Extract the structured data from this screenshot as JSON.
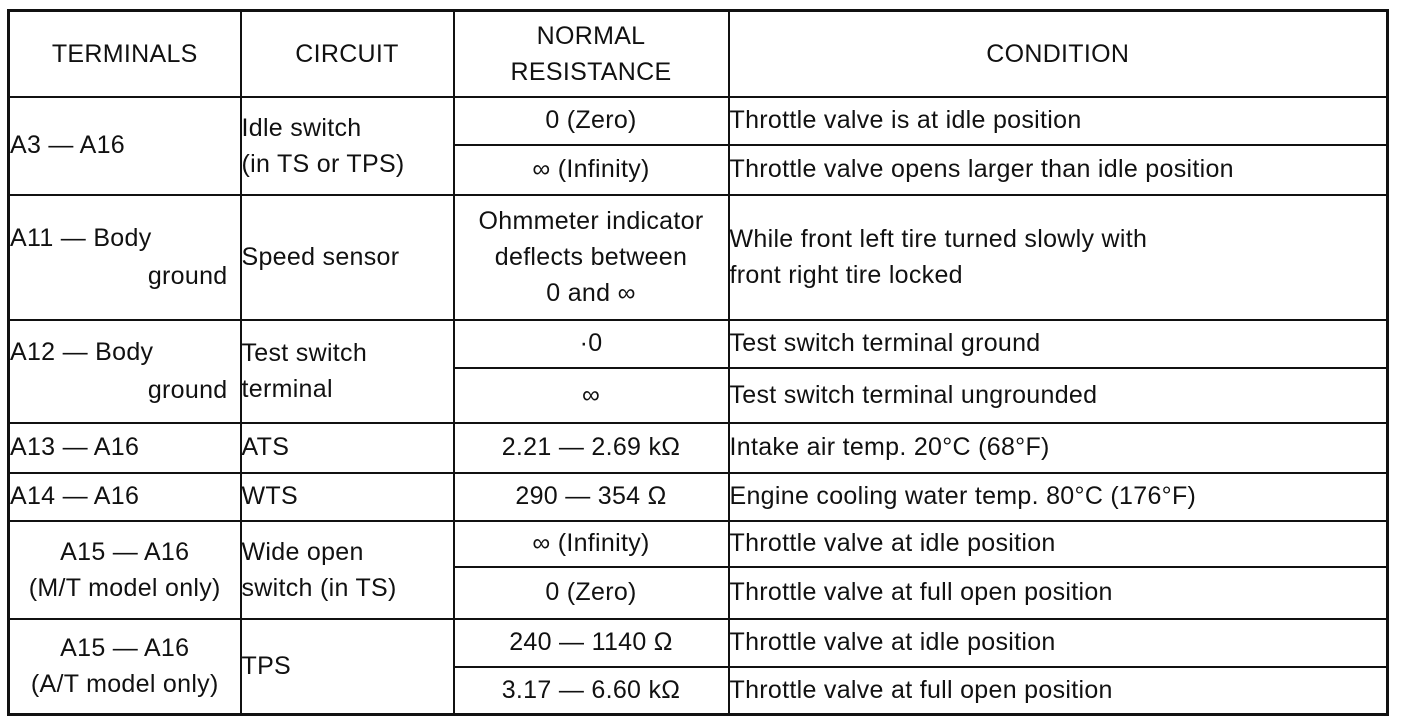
{
  "headers": {
    "terminals": "TERMINALS",
    "circuit": "CIRCUIT",
    "resistance_line1": "NORMAL",
    "resistance_line2": "RESISTANCE",
    "condition": "CONDITION"
  },
  "groups": [
    {
      "terminal": "A3 — A16",
      "circuit_line1": "Idle switch",
      "circuit_line2": "(in TS or TPS)",
      "rows": [
        {
          "resistance": "0 (Zero)",
          "condition": "Throttle valve is at idle position"
        },
        {
          "resistance": "∞ (Infinity)",
          "condition": "Throttle valve opens larger than idle position"
        }
      ]
    },
    {
      "terminal_line1": "A11 — Body",
      "terminal_line2": "ground",
      "circuit": "Speed sensor",
      "resistance_line1": "Ohmmeter indicator",
      "resistance_line2": "deflects between",
      "resistance_line3": "0 and ∞",
      "condition_line1": "While front left tire turned slowly with",
      "condition_line2": "front right tire locked"
    },
    {
      "terminal_line1": "A12 — Body",
      "terminal_line2": "ground",
      "circuit_line1": "Test switch",
      "circuit_line2": "terminal",
      "rows": [
        {
          "resistance": "·0",
          "condition": "Test switch terminal ground"
        },
        {
          "resistance": "∞",
          "condition": "Test switch terminal ungrounded"
        }
      ]
    },
    {
      "terminal": "A13 — A16",
      "circuit": "ATS",
      "resistance": "2.21 — 2.69 kΩ",
      "condition": "Intake air temp. 20°C (68°F)"
    },
    {
      "terminal": "A14 — A16",
      "circuit": "WTS",
      "resistance": "290 — 354 Ω",
      "condition": "Engine cooling water temp. 80°C (176°F)"
    },
    {
      "terminal_line1": "A15 — A16",
      "terminal_line2": "(M/T model only)",
      "circuit_line1": "Wide open",
      "circuit_line2": "switch (in TS)",
      "rows": [
        {
          "resistance": "∞ (Infinity)",
          "condition": "Throttle valve at idle position"
        },
        {
          "resistance": "0 (Zero)",
          "condition": "Throttle valve at full open position"
        }
      ]
    },
    {
      "terminal_line1": "A15 — A16",
      "terminal_line2": "(A/T model only)",
      "circuit": "TPS",
      "rows": [
        {
          "resistance": "240 — 1140 Ω",
          "condition": "Throttle valve at idle position"
        },
        {
          "resistance": "3.17 — 6.60 kΩ",
          "condition": "Throttle valve at full open position"
        }
      ]
    }
  ]
}
